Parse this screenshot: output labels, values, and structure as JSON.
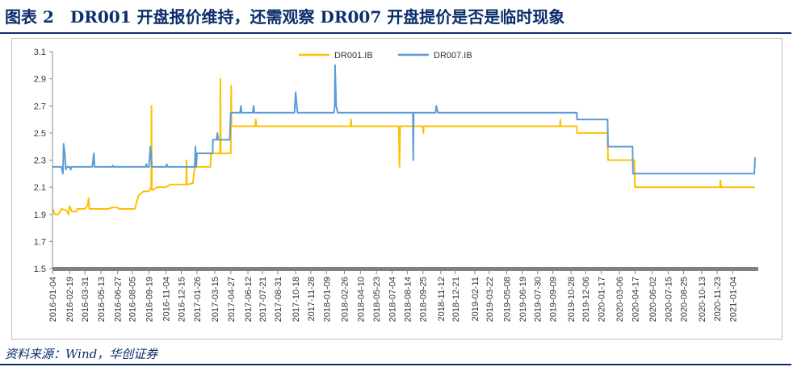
{
  "figure": {
    "title": "图表 2　DR001 开盘报价维持，还需观察 DR007 开盘提价是否是临时现象",
    "source": "资料来源：Wind，华创证券"
  },
  "chart_data": {
    "type": "line",
    "title": "",
    "xlabel": "",
    "ylabel": "",
    "ylim": [
      1.5,
      3.1
    ],
    "yticks": [
      "1.5",
      "1.7",
      "1.9",
      "2.1",
      "2.3",
      "2.5",
      "2.7",
      "2.9",
      "3.1"
    ],
    "xlim": [
      "2016-01-04",
      "2021-03-05"
    ],
    "grid": false,
    "legend_position": "top",
    "categories": [
      "2016-01-04",
      "2016-02-19",
      "2016-03-31",
      "2016-05-13",
      "2016-06-27",
      "2016-08-05",
      "2016-09-19",
      "2016-11-04",
      "2016-12-15",
      "2017-01-26",
      "2017-03-15",
      "2017-04-27",
      "2017-06-12",
      "2017-07-21",
      "2017-08-31",
      "2017-10-18",
      "2017-11-28",
      "2018-01-09",
      "2018-02-26",
      "2018-04-10",
      "2018-05-23",
      "2018-07-04",
      "2018-08-14",
      "2018-09-25",
      "2018-11-12",
      "2018-12-21",
      "2019-02-11",
      "2019-03-22",
      "2019-05-08",
      "2019-06-19",
      "2019-07-30",
      "2019-09-09",
      "2019-10-28",
      "2019-12-06",
      "2020-01-17",
      "2020-03-06",
      "2020-04-17",
      "2020-06-02",
      "2020-07-15",
      "2020-08-25",
      "2020-10-13",
      "2020-11-23",
      "2021-01-04"
    ],
    "series": [
      {
        "name": "DR001.IB",
        "color": "#ffc000",
        "points": [
          [
            "2016-01-04",
            1.95
          ],
          [
            "2016-01-10",
            1.9
          ],
          [
            "2016-01-20",
            1.9
          ],
          [
            "2016-01-28",
            1.94
          ],
          [
            "2016-02-10",
            1.93
          ],
          [
            "2016-02-16",
            1.9
          ],
          [
            "2016-02-19",
            1.96
          ],
          [
            "2016-02-25",
            1.92
          ],
          [
            "2016-03-08",
            1.92
          ],
          [
            "2016-03-10",
            1.94
          ],
          [
            "2016-03-31",
            1.94
          ],
          [
            "2016-04-08",
            1.97
          ],
          [
            "2016-04-10",
            2.02
          ],
          [
            "2016-04-12",
            1.94
          ],
          [
            "2016-06-01",
            1.94
          ],
          [
            "2016-06-12",
            1.95
          ],
          [
            "2016-06-27",
            1.95
          ],
          [
            "2016-06-30",
            1.94
          ],
          [
            "2016-08-12",
            1.94
          ],
          [
            "2016-08-15",
            1.97
          ],
          [
            "2016-08-22",
            2.04
          ],
          [
            "2016-09-05",
            2.07
          ],
          [
            "2016-09-19",
            2.07
          ],
          [
            "2016-09-25",
            2.1
          ],
          [
            "2016-09-26",
            2.7
          ],
          [
            "2016-09-27",
            2.08
          ],
          [
            "2016-10-01",
            2.08
          ],
          [
            "2016-10-10",
            2.1
          ],
          [
            "2016-11-04",
            2.1
          ],
          [
            "2016-11-15",
            2.12
          ],
          [
            "2016-12-28",
            2.12
          ],
          [
            "2016-12-29",
            2.3
          ],
          [
            "2016-12-30",
            2.12
          ],
          [
            "2017-01-15",
            2.13
          ],
          [
            "2017-01-20",
            2.25
          ],
          [
            "2017-03-03",
            2.25
          ],
          [
            "2017-03-05",
            2.35
          ],
          [
            "2017-03-29",
            2.35
          ],
          [
            "2017-03-30",
            2.9
          ],
          [
            "2017-03-31",
            2.35
          ],
          [
            "2017-04-27",
            2.35
          ],
          [
            "2017-04-28",
            2.85
          ],
          [
            "2017-04-29",
            2.55
          ],
          [
            "2017-07-01",
            2.55
          ],
          [
            "2017-07-03",
            2.6
          ],
          [
            "2017-07-05",
            2.55
          ],
          [
            "2018-03-15",
            2.55
          ],
          [
            "2018-03-16",
            2.6
          ],
          [
            "2018-03-17",
            2.55
          ],
          [
            "2018-07-22",
            2.55
          ],
          [
            "2018-07-24",
            2.25
          ],
          [
            "2018-07-26",
            2.55
          ],
          [
            "2018-09-25",
            2.55
          ],
          [
            "2018-09-26",
            2.5
          ],
          [
            "2018-09-27",
            2.55
          ],
          [
            "2019-09-28",
            2.55
          ],
          [
            "2019-09-29",
            2.6
          ],
          [
            "2019-09-30",
            2.55
          ],
          [
            "2019-11-12",
            2.55
          ],
          [
            "2019-11-13",
            2.5
          ],
          [
            "2020-02-03",
            2.5
          ],
          [
            "2020-02-04",
            2.3
          ],
          [
            "2020-04-15",
            2.3
          ],
          [
            "2020-04-16",
            2.1
          ],
          [
            "2020-12-01",
            2.1
          ],
          [
            "2020-12-02",
            2.15
          ],
          [
            "2020-12-04",
            2.1
          ],
          [
            "2021-03-05",
            2.1
          ]
        ]
      },
      {
        "name": "DR007.IB",
        "color": "#5b9bd5",
        "points": [
          [
            "2016-01-04",
            2.25
          ],
          [
            "2016-01-28",
            2.25
          ],
          [
            "2016-02-01",
            2.2
          ],
          [
            "2016-02-03",
            2.42
          ],
          [
            "2016-02-06",
            2.35
          ],
          [
            "2016-02-09",
            2.23
          ],
          [
            "2016-02-12",
            2.25
          ],
          [
            "2016-02-19",
            2.25
          ],
          [
            "2016-02-22",
            2.23
          ],
          [
            "2016-02-24",
            2.25
          ],
          [
            "2016-04-20",
            2.25
          ],
          [
            "2016-04-24",
            2.35
          ],
          [
            "2016-04-26",
            2.25
          ],
          [
            "2016-06-12",
            2.25
          ],
          [
            "2016-06-14",
            2.26
          ],
          [
            "2016-06-16",
            2.25
          ],
          [
            "2016-09-10",
            2.25
          ],
          [
            "2016-09-12",
            2.27
          ],
          [
            "2016-09-14",
            2.25
          ],
          [
            "2016-09-19",
            2.25
          ],
          [
            "2016-09-23",
            2.4
          ],
          [
            "2016-09-27",
            2.25
          ],
          [
            "2016-11-04",
            2.25
          ],
          [
            "2016-11-06",
            2.27
          ],
          [
            "2016-11-08",
            2.25
          ],
          [
            "2017-01-20",
            2.25
          ],
          [
            "2017-01-22",
            2.4
          ],
          [
            "2017-01-24",
            2.25
          ],
          [
            "2017-01-26",
            2.35
          ],
          [
            "2017-03-09",
            2.35
          ],
          [
            "2017-03-10",
            2.45
          ],
          [
            "2017-03-20",
            2.45
          ],
          [
            "2017-03-22",
            2.5
          ],
          [
            "2017-03-24",
            2.45
          ],
          [
            "2017-04-24",
            2.45
          ],
          [
            "2017-04-27",
            2.65
          ],
          [
            "2017-05-22",
            2.65
          ],
          [
            "2017-05-24",
            2.7
          ],
          [
            "2017-05-26",
            2.65
          ],
          [
            "2017-06-25",
            2.65
          ],
          [
            "2017-06-27",
            2.7
          ],
          [
            "2017-06-29",
            2.65
          ],
          [
            "2017-10-15",
            2.65
          ],
          [
            "2017-10-18",
            2.8
          ],
          [
            "2017-10-23",
            2.65
          ],
          [
            "2018-01-29",
            2.65
          ],
          [
            "2018-01-31",
            2.7
          ],
          [
            "2018-02-01",
            3.0
          ],
          [
            "2018-02-04",
            2.7
          ],
          [
            "2018-02-08",
            2.65
          ],
          [
            "2018-08-29",
            2.65
          ],
          [
            "2018-08-30",
            2.3
          ],
          [
            "2018-08-31",
            2.65
          ],
          [
            "2018-10-29",
            2.65
          ],
          [
            "2018-10-31",
            2.7
          ],
          [
            "2018-11-04",
            2.65
          ],
          [
            "2019-11-12",
            2.65
          ],
          [
            "2019-11-13",
            2.6
          ],
          [
            "2020-02-03",
            2.6
          ],
          [
            "2020-02-04",
            2.4
          ],
          [
            "2020-04-10",
            2.4
          ],
          [
            "2020-04-11",
            2.2
          ],
          [
            "2021-03-03",
            2.2
          ],
          [
            "2021-03-05",
            2.32
          ]
        ]
      }
    ]
  }
}
